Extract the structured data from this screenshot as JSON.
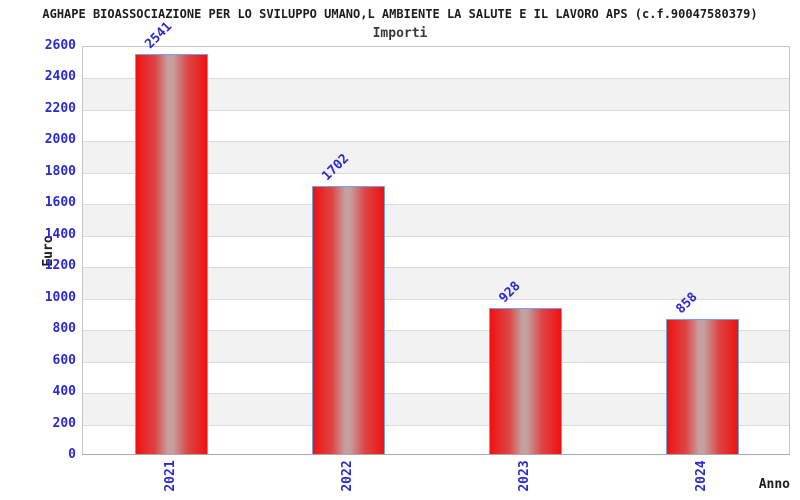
{
  "chart_data": {
    "type": "bar",
    "title": "AGHAPE BIOASSOCIAZIONE PER LO SVILUPPO UMANO,L AMBIENTE LA SALUTE E IL LAVORO APS (c.f.90047580379)",
    "subtitle": "Importi",
    "xlabel": "Anno",
    "ylabel": "Euro",
    "categories": [
      "2021",
      "2022",
      "2023",
      "2024"
    ],
    "values": [
      2541,
      1702,
      928,
      858
    ],
    "ylim": [
      0,
      2600
    ],
    "ytick_step": 200,
    "grid": "horizontal-bands",
    "legend_position": "none",
    "colors": {
      "bar_red": "#f01111",
      "bar_mid": "#de4545",
      "bar_highlight": "#c5a0a0",
      "bar_border": "#6fa5e6",
      "label_blue": "#2a2ad0",
      "band_gray": "#f2f2f2",
      "gridline_gray": "#dcdcdc",
      "frame_gray": "#c6c6c6",
      "text_dark": "#1d1d1d"
    }
  }
}
